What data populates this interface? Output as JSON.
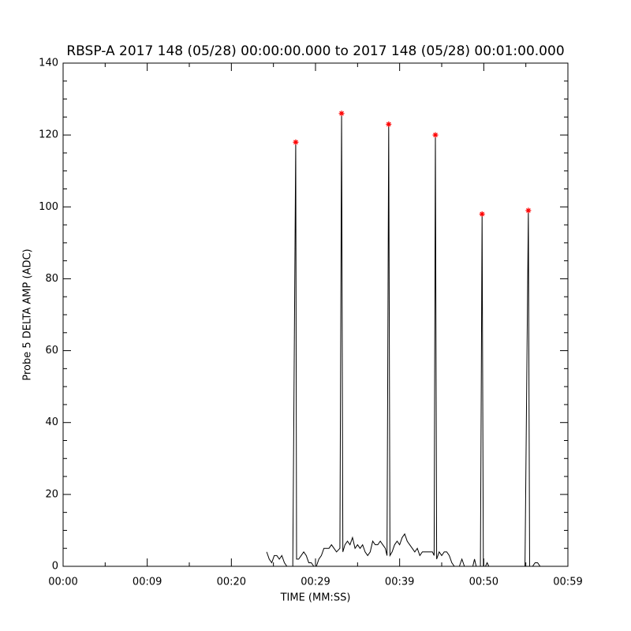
{
  "chart_data": {
    "type": "line",
    "title": "RBSP-A 2017 148 (05/28) 00:00:00.000 to 2017 148 (05/28) 00:01:00.000",
    "x_label": "TIME (MM:SS)",
    "y_label": "Probe 5 DELTA AMP (ADC)",
    "xlim": [
      0,
      60
    ],
    "xticks": [
      {
        "value": 0,
        "label": "00:00"
      },
      {
        "value": 10,
        "label": "00:09"
      },
      {
        "value": 20,
        "label": "00:20"
      },
      {
        "value": 30,
        "label": "00:29"
      },
      {
        "value": 40,
        "label": "00:39"
      },
      {
        "value": 50,
        "label": "00:50"
      },
      {
        "value": 60,
        "label": "00:59"
      }
    ],
    "ylim": [
      0,
      140
    ],
    "yticks": [
      0,
      20,
      40,
      60,
      80,
      100,
      120,
      140
    ],
    "x_minor_divisions": 2,
    "y_minor_divisions": 4,
    "series": [
      {
        "color": "#000000",
        "x": [
          24.2,
          24.5,
          24.8,
          25.1,
          25.4,
          25.7,
          26.0,
          26.3,
          26.6,
          27.0,
          27.3,
          27.55,
          27.65,
          27.75,
          28.0,
          28.3,
          28.6,
          28.9,
          29.2,
          29.5,
          29.8,
          30.1,
          30.4,
          30.7,
          31.0,
          31.3,
          31.6,
          31.9,
          32.2,
          32.5,
          32.9,
          33.1,
          33.25,
          33.5,
          33.8,
          34.1,
          34.4,
          34.7,
          35.0,
          35.3,
          35.6,
          35.9,
          36.2,
          36.5,
          36.8,
          37.1,
          37.4,
          37.7,
          38.0,
          38.3,
          38.5,
          38.7,
          38.85,
          39.1,
          39.4,
          39.7,
          40.0,
          40.3,
          40.6,
          40.9,
          41.2,
          41.5,
          41.8,
          42.1,
          42.4,
          42.7,
          43.0,
          43.3,
          43.6,
          43.9,
          44.1,
          44.25,
          44.4,
          44.7,
          45.0,
          45.3,
          45.6,
          45.9,
          46.2,
          46.5,
          46.8,
          47.1,
          47.4,
          47.7,
          48.0,
          48.7,
          48.9,
          49.1,
          49.3,
          49.6,
          49.8,
          49.95,
          50.2,
          50.4,
          50.6,
          51.0,
          54.9,
          55.3,
          55.45,
          55.8,
          56.1,
          56.4,
          56.7,
          57.0
        ],
        "values": [
          4,
          2,
          1,
          3,
          3,
          2,
          3,
          1,
          0,
          0,
          0,
          84,
          118,
          2,
          2,
          3,
          4,
          3,
          1,
          1,
          0,
          0,
          2,
          3,
          5,
          5,
          5,
          6,
          5,
          4,
          5,
          126,
          4,
          6,
          7,
          6,
          8,
          5,
          6,
          5,
          6,
          4,
          3,
          4,
          7,
          6,
          6,
          7,
          6,
          5,
          3,
          123,
          3,
          4,
          6,
          7,
          6,
          8,
          9,
          7,
          6,
          5,
          4,
          5,
          3,
          4,
          4,
          4,
          4,
          4,
          3,
          120,
          2,
          4,
          3,
          4,
          4,
          3,
          1,
          0,
          0,
          0,
          2,
          0,
          null,
          0,
          2,
          0,
          null,
          0,
          98,
          0,
          0,
          1,
          0,
          null,
          0,
          99,
          0,
          0,
          1,
          1,
          0,
          0
        ]
      },
      {
        "color": "#ff0000",
        "marker": "asterisk",
        "x": [
          27.65,
          33.1,
          38.7,
          44.25,
          49.8,
          55.3
        ],
        "values": [
          118,
          126,
          123,
          120,
          98,
          99
        ]
      }
    ]
  }
}
